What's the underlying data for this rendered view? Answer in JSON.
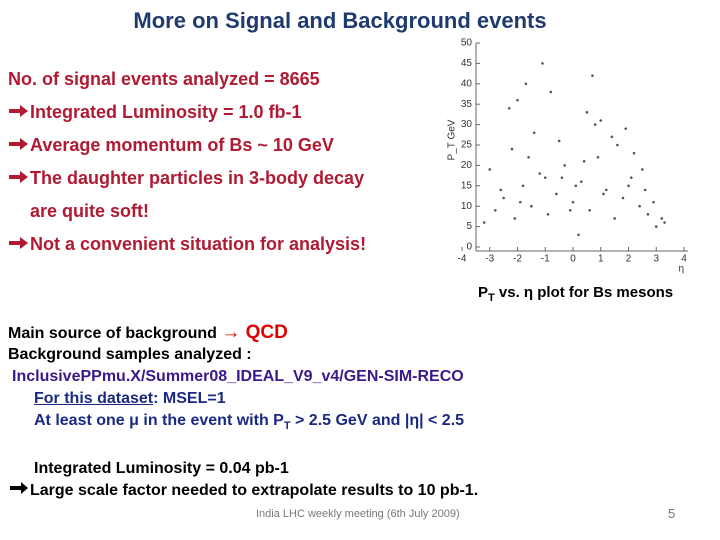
{
  "title": "More on Signal and Background events",
  "bullets": [
    {
      "text": "No. of signal events analyzed = 8665",
      "arrow": false
    },
    {
      "text": "Integrated Luminosity = 1.0 fb-1",
      "arrow": true
    },
    {
      "text": "Average momentum of Bs ~ 10 GeV",
      "arrow": true
    },
    {
      "text": "The daughter particles in 3-body decay",
      "arrow": true
    },
    {
      "text": "are quite soft!",
      "arrow": false
    },
    {
      "text": "Not a convenient situation for analysis!",
      "arrow": true
    }
  ],
  "chart_data": {
    "type": "scatter",
    "caption": [
      "P",
      "T",
      " vs. η plot for Bs mesons"
    ],
    "xlabel": "η",
    "ylabel": "P_T GeV",
    "color": "#555555",
    "xlim": [
      -4,
      4
    ],
    "ylim": [
      0,
      50
    ],
    "xticks": [
      -4,
      -3,
      -2,
      -1,
      0,
      1,
      2,
      3,
      4
    ],
    "yticks": [
      0,
      5,
      10,
      15,
      20,
      25,
      30,
      35,
      40,
      45,
      50
    ],
    "x": [
      -3.2,
      -2.8,
      -2.5,
      -2.1,
      -1.8,
      -1.5,
      -1.2,
      -0.9,
      -0.6,
      -0.3,
      0,
      0.3,
      0.6,
      0.9,
      1.2,
      1.5,
      1.8,
      2.1,
      2.4,
      2.7,
      3.0,
      3.3,
      -3.0,
      -2.6,
      -2.2,
      -1.9,
      -1.4,
      -1.0,
      -0.5,
      -0.1,
      0.4,
      0.8,
      1.1,
      1.6,
      2.0,
      2.5,
      2.9,
      3.2,
      -2.3,
      -1.6,
      -0.8,
      0.1,
      0.7,
      1.4,
      2.2,
      -1.1,
      0.5,
      1.9,
      -2.0,
      -0.4,
      1.0,
      2.6,
      -1.7,
      0.2
    ],
    "y": [
      6,
      9,
      12,
      7,
      15,
      10,
      18,
      8,
      13,
      20,
      11,
      16,
      9,
      22,
      14,
      7,
      12,
      17,
      10,
      8,
      5,
      6,
      19,
      14,
      24,
      11,
      28,
      17,
      26,
      9,
      21,
      30,
      13,
      25,
      15,
      19,
      11,
      7,
      34,
      22,
      38,
      15,
      42,
      27,
      23,
      45,
      33,
      29,
      36,
      17,
      31,
      14,
      40,
      3
    ]
  },
  "background": {
    "source": [
      "Main source of background ",
      "→",
      " QCD"
    ],
    "samples": "Background samples analyzed :",
    "dataset_name": "InclusivePPmu.X/Summer08_IDEAL_V9_v4/GEN-SIM-RECO",
    "dataset_cut": [
      "For this dataset",
      ": MSEL=1"
    ],
    "cut": [
      "At least one μ in the event with P",
      "T",
      " > 2.5 GeV and |η| < 2.5"
    ],
    "luminosity": "Integrated Luminosity = 0.04 pb-1",
    "conclusion": "Large scale factor needed to extrapolate results to 10 pb-1."
  },
  "footer": {
    "meeting": "India LHC weekly meeting (6th July 2009)",
    "page": "5"
  }
}
